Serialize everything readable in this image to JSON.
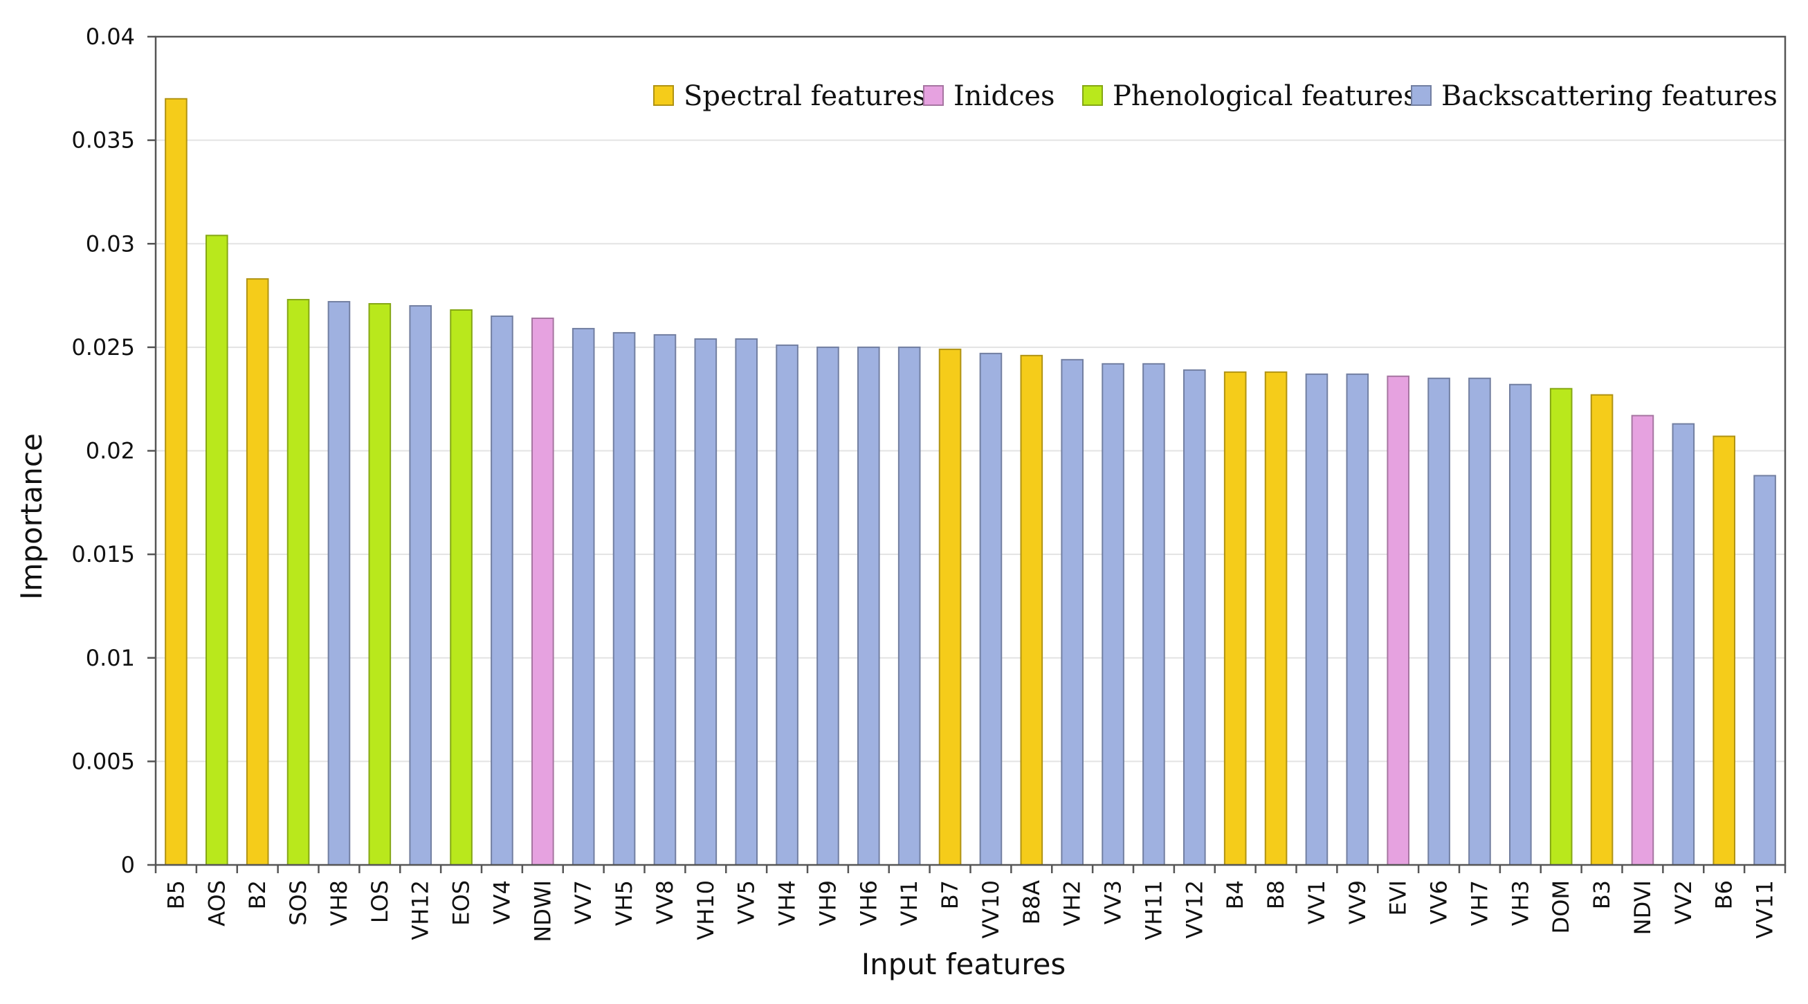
{
  "chart_data": {
    "type": "bar",
    "title": "",
    "xlabel": "Input features",
    "ylabel": "Importance",
    "ylim": [
      0,
      0.04
    ],
    "yticks": [
      "0",
      "0.005",
      "0.01",
      "0.015",
      "0.02",
      "0.025",
      "0.03",
      "0.035",
      "0.04"
    ],
    "grid": "horizontal",
    "legend_position": "top-right",
    "groups": [
      {
        "name": "Spectral features",
        "color": "#f5cc1a"
      },
      {
        "name": "Inidces",
        "color": "#e6a2e0"
      },
      {
        "name": "Phenological features",
        "color": "#b9e81c"
      },
      {
        "name": "Backscattering features",
        "color": "#9fb1e0"
      }
    ],
    "categories": [
      "B5",
      "AOS",
      "B2",
      "SOS",
      "VH8",
      "LOS",
      "VH12",
      "EOS",
      "VV4",
      "NDWI",
      "VV7",
      "VH5",
      "VV8",
      "VH10",
      "VV5",
      "VH4",
      "VH9",
      "VH6",
      "VH1",
      "B7",
      "VV10",
      "B8A",
      "VH2",
      "VV3",
      "VH11",
      "VV12",
      "B4",
      "B8",
      "VV1",
      "VV9",
      "EVI",
      "VV6",
      "VH7",
      "VH3",
      "DOM",
      "B3",
      "NDVI",
      "VV2",
      "B6",
      "VV11"
    ],
    "values": [
      0.037,
      0.0304,
      0.0283,
      0.0273,
      0.0272,
      0.0271,
      0.027,
      0.0268,
      0.0265,
      0.0264,
      0.0259,
      0.0257,
      0.0256,
      0.0254,
      0.0254,
      0.0251,
      0.025,
      0.025,
      0.025,
      0.0249,
      0.0247,
      0.0246,
      0.0244,
      0.0242,
      0.0242,
      0.0239,
      0.0238,
      0.0238,
      0.0237,
      0.0237,
      0.0236,
      0.0235,
      0.0235,
      0.0232,
      0.023,
      0.0227,
      0.0217,
      0.0213,
      0.0207,
      0.0188
    ],
    "group_index": [
      0,
      2,
      0,
      2,
      3,
      2,
      3,
      2,
      3,
      1,
      3,
      3,
      3,
      3,
      3,
      3,
      3,
      3,
      3,
      0,
      3,
      0,
      3,
      3,
      3,
      3,
      0,
      0,
      3,
      3,
      1,
      3,
      3,
      3,
      2,
      0,
      1,
      3,
      0,
      3
    ]
  }
}
